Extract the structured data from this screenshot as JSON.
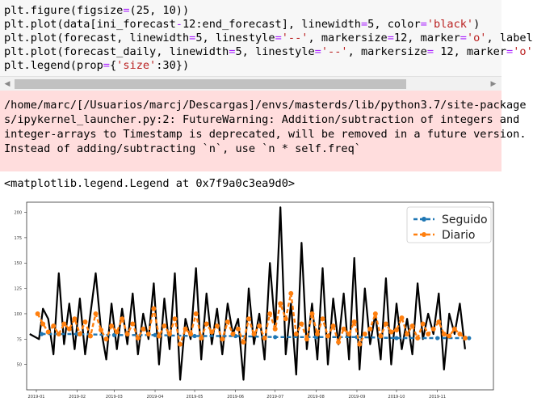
{
  "code_cell": {
    "lines": [
      [
        {
          "t": "plt.figure(figsize",
          "c": "#000"
        },
        {
          "t": "=",
          "c": "#aa22ff"
        },
        {
          "t": "(25, 10))",
          "c": "#000"
        }
      ],
      [
        {
          "t": "plt.plot(data[ini_forecast",
          "c": "#000"
        },
        {
          "t": "-",
          "c": "#aa22ff"
        },
        {
          "t": "12:end_forecast], linewidth",
          "c": "#000"
        },
        {
          "t": "=",
          "c": "#aa22ff"
        },
        {
          "t": "5, color",
          "c": "#000"
        },
        {
          "t": "=",
          "c": "#aa22ff"
        },
        {
          "t": "'black'",
          "c": "#ba2121"
        },
        {
          "t": ")",
          "c": "#000"
        }
      ],
      [
        {
          "t": "plt.plot(forecast, linewidth",
          "c": "#000"
        },
        {
          "t": "=",
          "c": "#aa22ff"
        },
        {
          "t": "5, linestyle",
          "c": "#000"
        },
        {
          "t": "=",
          "c": "#aa22ff"
        },
        {
          "t": "'--'",
          "c": "#ba2121"
        },
        {
          "t": ", markersize",
          "c": "#000"
        },
        {
          "t": "=",
          "c": "#aa22ff"
        },
        {
          "t": "12, marker",
          "c": "#000"
        },
        {
          "t": "=",
          "c": "#aa22ff"
        },
        {
          "t": "'o'",
          "c": "#ba2121"
        },
        {
          "t": ", label",
          "c": "#000"
        }
      ],
      [
        {
          "t": "plt.plot(forecast_daily, linewidth",
          "c": "#000"
        },
        {
          "t": "=",
          "c": "#aa22ff"
        },
        {
          "t": "5, linestyle",
          "c": "#000"
        },
        {
          "t": "=",
          "c": "#aa22ff"
        },
        {
          "t": "'--'",
          "c": "#ba2121"
        },
        {
          "t": ", markersize",
          "c": "#000"
        },
        {
          "t": "=",
          "c": "#aa22ff"
        },
        {
          "t": " 12, marker",
          "c": "#000"
        },
        {
          "t": "=",
          "c": "#aa22ff"
        },
        {
          "t": "'o'",
          "c": "#ba2121"
        }
      ],
      [
        {
          "t": "plt.legend(prop",
          "c": "#000"
        },
        {
          "t": "=",
          "c": "#aa22ff"
        },
        {
          "t": "{",
          "c": "#000"
        },
        {
          "t": "'size'",
          "c": "#ba2121"
        },
        {
          "t": ":30})",
          "c": "#000"
        }
      ]
    ]
  },
  "scrollbar": {
    "left_arrow": "◀",
    "right_arrow": "▶"
  },
  "warning": {
    "lines": [
      "/home/marc/[/Usuarios/marcj/Descargas]/envs/masterds/lib/python3.7/site-package",
      "s/ipykernel_launcher.py:2: FutureWarning: Addition/subtraction of integers and",
      "integer-arrays to Timestamp is deprecated, will be removed in a future version.",
      "Instead of adding/subtracting `n`, use `n * self.freq`"
    ]
  },
  "output_repr": "<matplotlib.legend.Legend at 0x7f9a0c3ea9d0>",
  "chart_data": {
    "type": "line",
    "xlabel": "",
    "ylabel": "",
    "ylim": [
      25,
      210
    ],
    "yticks": [
      50,
      75,
      100,
      125,
      150,
      175,
      200
    ],
    "xticks": [
      "2019-01",
      "2019-02",
      "2019-03",
      "2019-04",
      "2019-05",
      "2019-06",
      "2019-07",
      "2019-08",
      "2019-09",
      "2019-10",
      "2019-11"
    ],
    "x_range": [
      "2019-01-01",
      "2019-11-30"
    ],
    "legend": {
      "placement": "top-right",
      "entries": [
        "Seguido",
        "Diario"
      ]
    },
    "colors": {
      "actual": "#000000",
      "Seguido": "#1f77b4",
      "Diario": "#ff7f0e"
    },
    "series": [
      {
        "name": "",
        "color": "#000000",
        "x": [
          "2018-12-27",
          "2019-01-03",
          "2019-01-06",
          "2019-01-10",
          "2019-01-14",
          "2019-01-18",
          "2019-01-22",
          "2019-01-26",
          "2019-01-30",
          "2019-02-03",
          "2019-02-07",
          "2019-02-11",
          "2019-02-15",
          "2019-02-19",
          "2019-02-23",
          "2019-02-27",
          "2019-03-03",
          "2019-03-07",
          "2019-03-11",
          "2019-03-15",
          "2019-03-19",
          "2019-03-23",
          "2019-03-27",
          "2019-03-31",
          "2019-04-04",
          "2019-04-08",
          "2019-04-12",
          "2019-04-16",
          "2019-04-20",
          "2019-04-24",
          "2019-04-28",
          "2019-05-02",
          "2019-05-06",
          "2019-05-10",
          "2019-05-14",
          "2019-05-18",
          "2019-05-22",
          "2019-05-26",
          "2019-05-30",
          "2019-06-03",
          "2019-06-07",
          "2019-06-11",
          "2019-06-15",
          "2019-06-19",
          "2019-06-23",
          "2019-06-27",
          "2019-07-01",
          "2019-07-05",
          "2019-07-09",
          "2019-07-13",
          "2019-07-17",
          "2019-07-21",
          "2019-07-25",
          "2019-07-29",
          "2019-08-02",
          "2019-08-06",
          "2019-08-10",
          "2019-08-14",
          "2019-08-18",
          "2019-08-22",
          "2019-08-26",
          "2019-08-30",
          "2019-09-03",
          "2019-09-07",
          "2019-09-11",
          "2019-09-15",
          "2019-09-19",
          "2019-09-23",
          "2019-09-27",
          "2019-10-01",
          "2019-10-05",
          "2019-10-09",
          "2019-10-13",
          "2019-10-17",
          "2019-10-21",
          "2019-10-25",
          "2019-10-29",
          "2019-11-02",
          "2019-11-06",
          "2019-11-10",
          "2019-11-14",
          "2019-11-18",
          "2019-11-22"
        ],
        "values": [
          80,
          75,
          105,
          95,
          60,
          140,
          70,
          110,
          65,
          115,
          60,
          100,
          140,
          85,
          55,
          110,
          65,
          105,
          70,
          120,
          60,
          100,
          75,
          130,
          50,
          115,
          65,
          140,
          35,
          95,
          75,
          145,
          55,
          120,
          70,
          105,
          60,
          110,
          80,
          95,
          35,
          125,
          70,
          100,
          55,
          150,
          85,
          205,
          60,
          110,
          40,
          170,
          65,
          110,
          55,
          145,
          50,
          115,
          70,
          120,
          55,
          155,
          45,
          125,
          70,
          100,
          55,
          135,
          50,
          110,
          65,
          95,
          60,
          130,
          75,
          100,
          80,
          120,
          45,
          100,
          80,
          110,
          65
        ]
      },
      {
        "name": "Seguido",
        "color": "#1f77b4",
        "x": [
          "2019-01-05",
          "2019-02-01",
          "2019-03-01",
          "2019-04-01",
          "2019-05-01",
          "2019-06-01",
          "2019-07-01",
          "2019-08-01",
          "2019-09-01",
          "2019-10-01",
          "2019-11-01",
          "2019-11-25"
        ],
        "values": [
          80,
          80,
          79,
          79,
          78,
          78,
          77,
          77,
          77,
          76,
          76,
          76
        ]
      },
      {
        "name": "Diario",
        "color": "#ff7f0e",
        "x": [
          "2019-01-02",
          "2019-01-06",
          "2019-01-10",
          "2019-01-14",
          "2019-01-18",
          "2019-01-22",
          "2019-01-26",
          "2019-01-30",
          "2019-02-03",
          "2019-02-07",
          "2019-02-11",
          "2019-02-15",
          "2019-02-19",
          "2019-02-23",
          "2019-02-27",
          "2019-03-03",
          "2019-03-07",
          "2019-03-11",
          "2019-03-15",
          "2019-03-19",
          "2019-03-23",
          "2019-03-27",
          "2019-03-31",
          "2019-04-04",
          "2019-04-08",
          "2019-04-12",
          "2019-04-16",
          "2019-04-20",
          "2019-04-24",
          "2019-04-28",
          "2019-05-02",
          "2019-05-06",
          "2019-05-10",
          "2019-05-14",
          "2019-05-18",
          "2019-05-22",
          "2019-05-26",
          "2019-05-30",
          "2019-06-03",
          "2019-06-07",
          "2019-06-11",
          "2019-06-15",
          "2019-06-19",
          "2019-06-23",
          "2019-06-27",
          "2019-07-01",
          "2019-07-05",
          "2019-07-09",
          "2019-07-13",
          "2019-07-17",
          "2019-07-21",
          "2019-07-25",
          "2019-07-29",
          "2019-08-02",
          "2019-08-06",
          "2019-08-10",
          "2019-08-14",
          "2019-08-18",
          "2019-08-22",
          "2019-08-26",
          "2019-08-30",
          "2019-09-03",
          "2019-09-07",
          "2019-09-11",
          "2019-09-15",
          "2019-09-19",
          "2019-09-23",
          "2019-09-27",
          "2019-10-01",
          "2019-10-05",
          "2019-10-09",
          "2019-10-13",
          "2019-10-17",
          "2019-10-21",
          "2019-10-25",
          "2019-10-29",
          "2019-11-02",
          "2019-11-06",
          "2019-11-10",
          "2019-11-14",
          "2019-11-18",
          "2019-11-22"
        ],
        "values": [
          100,
          90,
          82,
          88,
          80,
          90,
          85,
          95,
          80,
          92,
          78,
          100,
          84,
          75,
          88,
          82,
          95,
          80,
          90,
          76,
          85,
          80,
          105,
          78,
          88,
          80,
          95,
          70,
          85,
          80,
          100,
          76,
          90,
          82,
          88,
          75,
          92,
          80,
          85,
          72,
          95,
          80,
          88,
          76,
          100,
          85,
          110,
          95,
          120,
          80,
          90,
          75,
          100,
          80,
          95,
          78,
          88,
          72,
          85,
          80,
          92,
          70,
          80,
          85,
          100,
          78,
          90,
          82,
          84,
          96,
          80,
          88,
          76,
          90,
          80,
          85,
          92,
          80,
          78,
          85,
          80,
          76
        ]
      }
    ]
  }
}
